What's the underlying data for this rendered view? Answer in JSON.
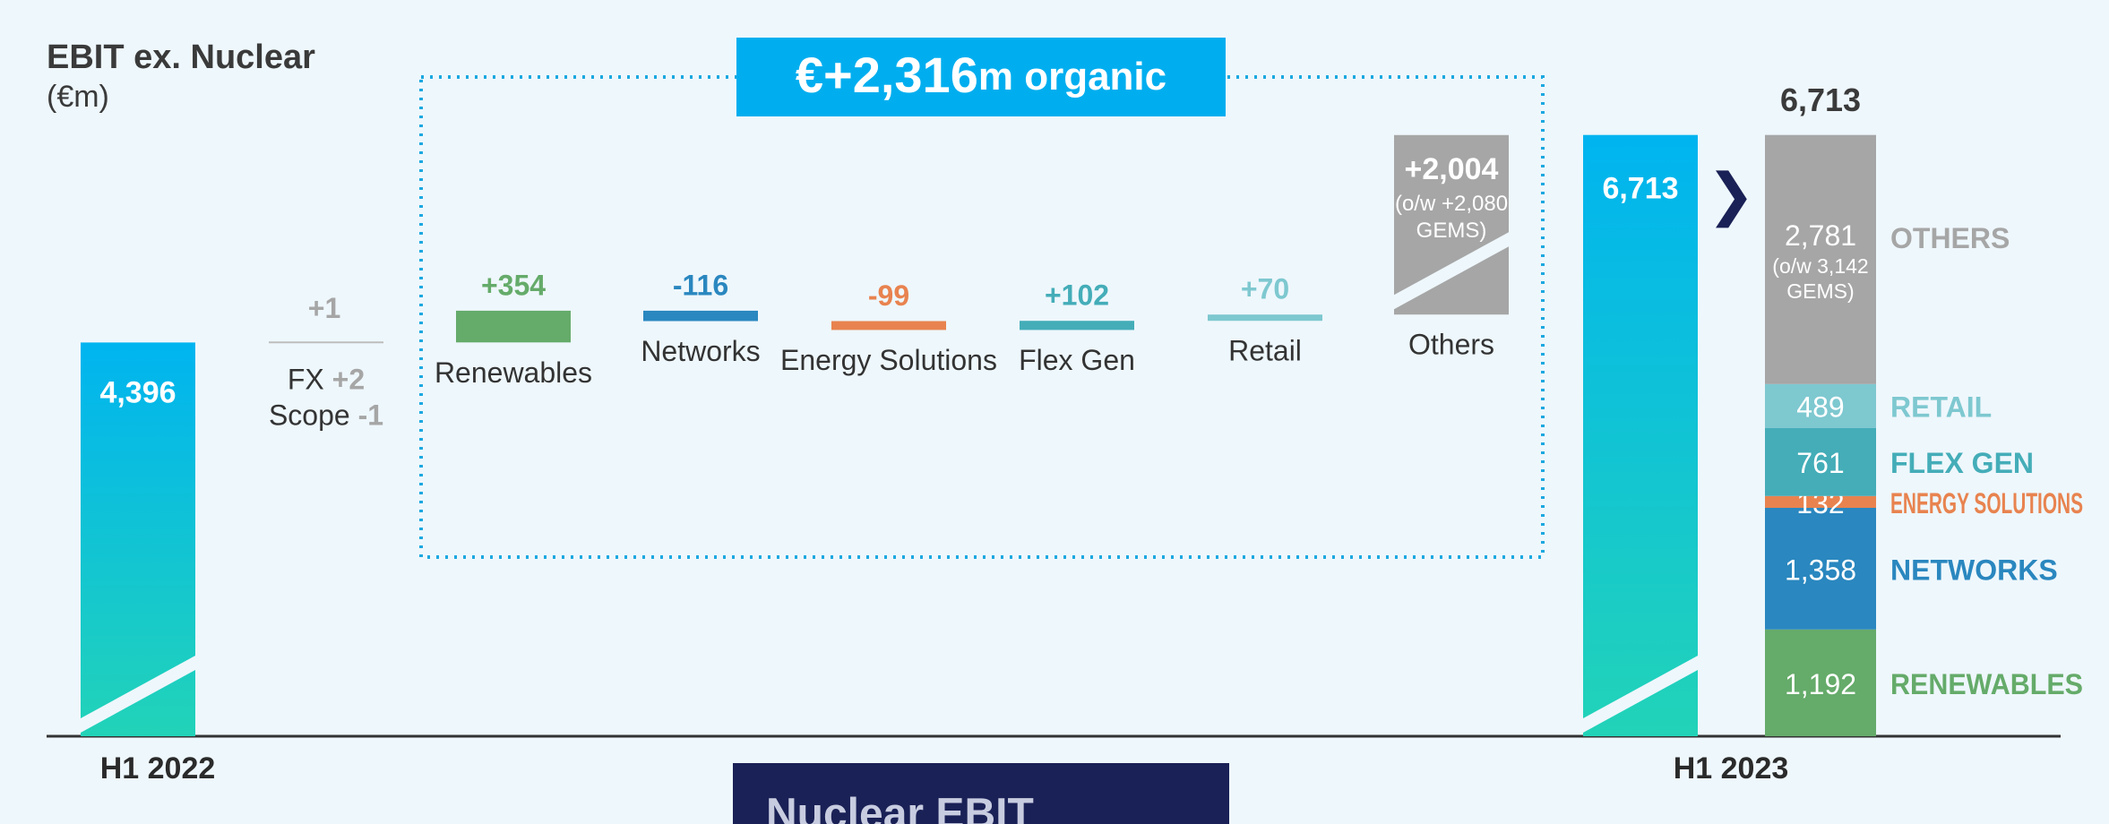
{
  "chart_data": {
    "type": "waterfall",
    "title": "EBIT ex. Nuclear",
    "subtitle": "(€m)",
    "organic": {
      "amount": "€+2,316",
      "unit": "m organic"
    },
    "ylim": [
      0,
      7000
    ],
    "start": {
      "category": "H1 2022",
      "value": 4396,
      "value_label": "4,396"
    },
    "fx": {
      "value": 1,
      "value_label": "+1",
      "parts": [
        {
          "name": "FX",
          "value": 2,
          "value_label": "+2"
        },
        {
          "name": "Scope",
          "value": -1,
          "value_label": "-1"
        }
      ]
    },
    "categories": [
      "Renewables",
      "Networks",
      "Energy Solutions",
      "Flex Gen",
      "Retail",
      "Others"
    ],
    "values": [
      354,
      -116,
      -99,
      102,
      70,
      2004
    ],
    "value_labels": [
      "+354",
      "-116",
      "-99",
      "+102",
      "+70",
      "+2,004"
    ],
    "colors": [
      "#65ab6a",
      "#2a87bf",
      "#e8834f",
      "#44adb8",
      "#7ec8d0",
      "#a6a6a6"
    ],
    "others_note": [
      "(o/w +2,080",
      "GEMS)"
    ],
    "end": {
      "category": "H1 2023",
      "value": 6713,
      "value_label": "6,713"
    },
    "breakdown": {
      "total": 6713,
      "total_label": "6,713",
      "names": [
        "RENEWABLES",
        "NETWORKS",
        "ENERGY SOLUTIONS",
        "FLEX GEN",
        "RETAIL",
        "OTHERS"
      ],
      "values": [
        1192,
        1358,
        132,
        761,
        489,
        2781
      ],
      "value_labels": [
        "1,192",
        "1,358",
        "132",
        "761",
        "489",
        "2,781"
      ],
      "colors": [
        "#65ab6a",
        "#2a87bf",
        "#e8834f",
        "#44adb8",
        "#7ec8d0",
        "#a6a6a6"
      ],
      "others_note": [
        "(o/w 3,142",
        "GEMS)"
      ]
    },
    "footer": "Nuclear EBIT"
  }
}
